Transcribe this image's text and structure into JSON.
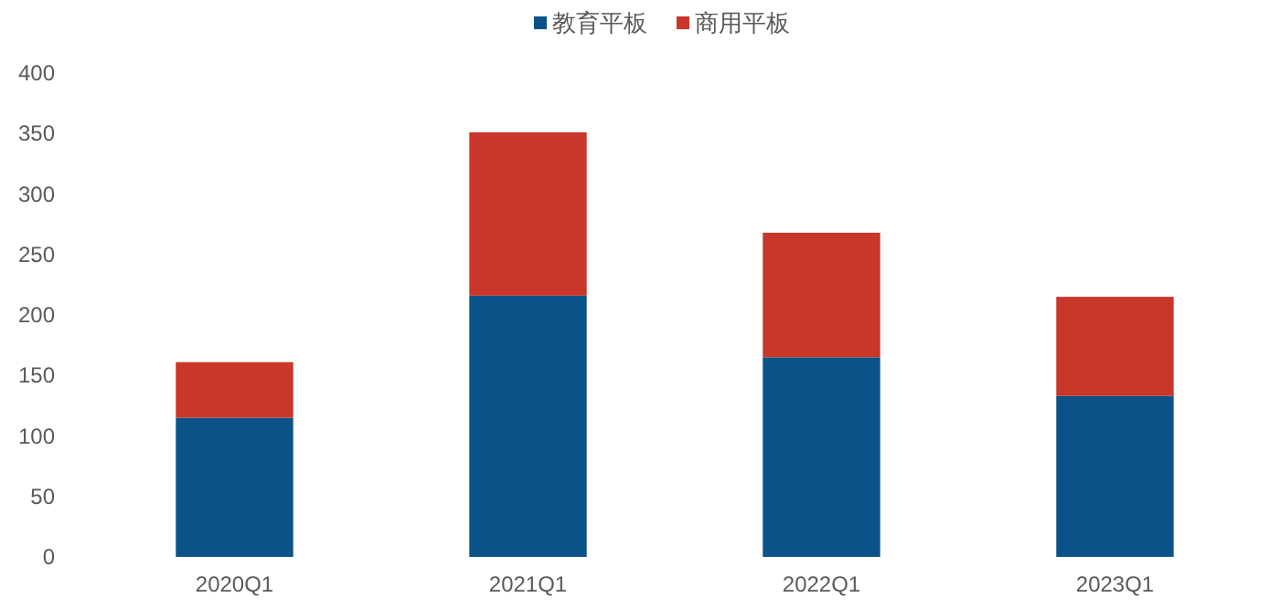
{
  "chart_data": {
    "type": "bar",
    "stacked": true,
    "legend": "top",
    "grid": false,
    "categories": [
      "2020Q1",
      "2021Q1",
      "2022Q1",
      "2023Q1"
    ],
    "ylim": [
      0,
      400
    ],
    "yticks": [
      0,
      50,
      100,
      150,
      200,
      250,
      300,
      350,
      400
    ],
    "series": [
      {
        "name": "教育平板",
        "color": "#0a5288",
        "values": [
          115,
          216,
          165,
          133
        ]
      },
      {
        "name": "商用平板",
        "color": "#c8372a",
        "values": [
          46,
          135,
          103,
          82
        ]
      }
    ]
  }
}
